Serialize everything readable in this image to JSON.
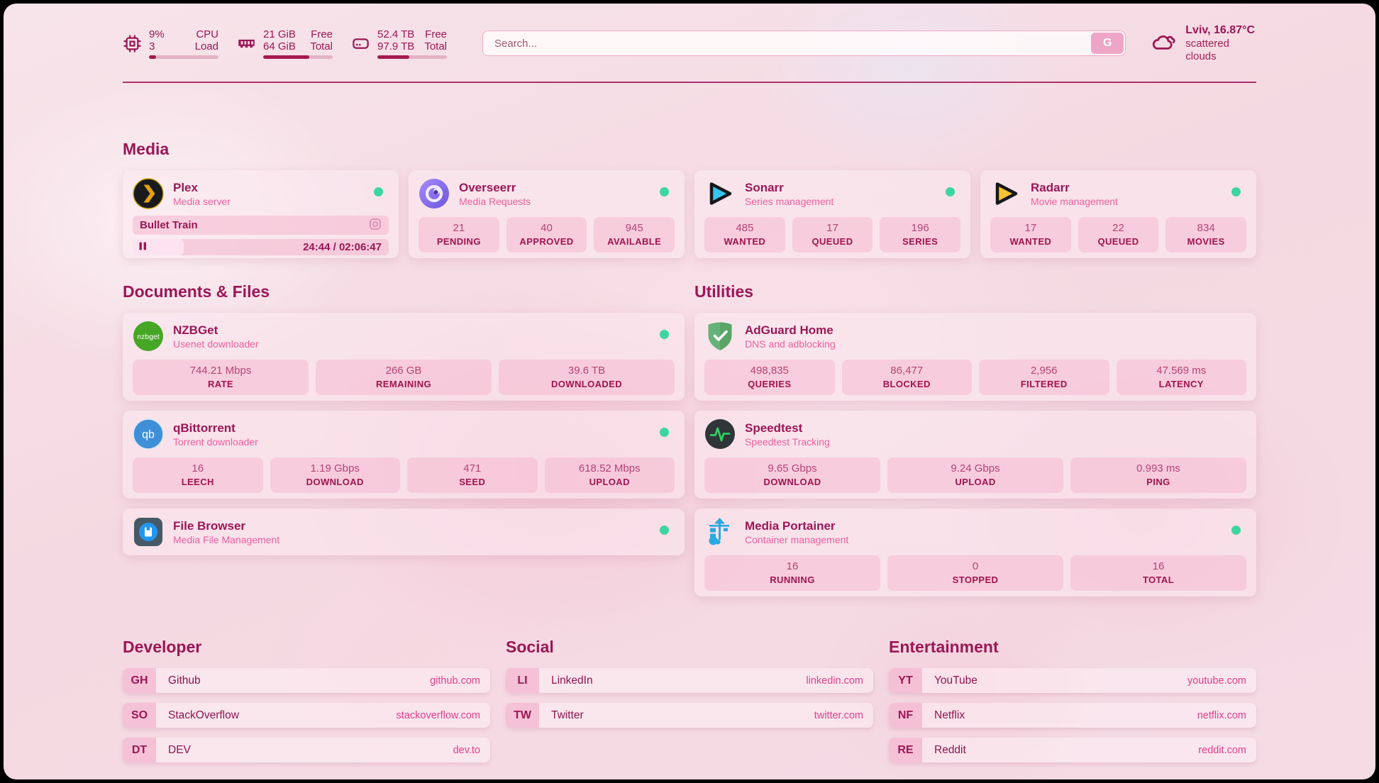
{
  "theme": {
    "accent": "#9b1656",
    "subtitle_pink": "#ee5f9f",
    "url_pink": "#e23f8d",
    "online_green": "#3ed6a0",
    "progress_fill": "#a41a4e"
  },
  "topbar": {
    "cpu": {
      "value_top": "9%",
      "value_bottom": "3",
      "label_top": "CPU",
      "label_bottom": "Load",
      "progress_pct": 10
    },
    "memory": {
      "value_top": "21 GiB",
      "value_bottom": "64 GiB",
      "label_top": "Free",
      "label_bottom": "Total",
      "progress_pct": 66
    },
    "storage": {
      "value_top": "52.4 TB",
      "value_bottom": "97.9 TB",
      "label_top": "Free",
      "label_bottom": "Total",
      "progress_pct": 46
    },
    "search": {
      "placeholder": "Search...",
      "button_label": "G"
    },
    "weather": {
      "location_temp": "Lviv, 16.87°C",
      "condition": "scattered clouds"
    }
  },
  "sections": {
    "media": {
      "title": "Media",
      "cards": [
        {
          "name": "Plex",
          "subtitle": "Media server",
          "online": true,
          "player": {
            "title": "Bullet Train",
            "time": "24:44 / 02:06:47",
            "progress_pct": 20,
            "state": "paused"
          }
        },
        {
          "name": "Overseerr",
          "subtitle": "Media Requests",
          "online": true,
          "stats": [
            {
              "value": "21",
              "label": "PENDING"
            },
            {
              "value": "40",
              "label": "APPROVED"
            },
            {
              "value": "945",
              "label": "AVAILABLE"
            }
          ]
        },
        {
          "name": "Sonarr",
          "subtitle": "Series management",
          "online": true,
          "stats": [
            {
              "value": "485",
              "label": "WANTED"
            },
            {
              "value": "17",
              "label": "QUEUED"
            },
            {
              "value": "196",
              "label": "SERIES"
            }
          ]
        },
        {
          "name": "Radarr",
          "subtitle": "Movie management",
          "online": true,
          "stats": [
            {
              "value": "17",
              "label": "WANTED"
            },
            {
              "value": "22",
              "label": "QUEUED"
            },
            {
              "value": "834",
              "label": "MOVIES"
            }
          ]
        }
      ]
    },
    "documents": {
      "title": "Documents & Files",
      "cards": [
        {
          "name": "NZBGet",
          "subtitle": "Usenet downloader",
          "online": true,
          "stats": [
            {
              "value": "744.21 Mbps",
              "label": "RATE"
            },
            {
              "value": "266 GB",
              "label": "REMAINING"
            },
            {
              "value": "39.6 TB",
              "label": "DOWNLOADED"
            }
          ]
        },
        {
          "name": "qBittorrent",
          "subtitle": "Torrent downloader",
          "online": true,
          "stats": [
            {
              "value": "16",
              "label": "LEECH"
            },
            {
              "value": "1.19 Gbps",
              "label": "DOWNLOAD"
            },
            {
              "value": "471",
              "label": "SEED"
            },
            {
              "value": "618.52 Mbps",
              "label": "UPLOAD"
            }
          ]
        },
        {
          "name": "File Browser",
          "subtitle": "Media File Management",
          "online": true,
          "stats": []
        }
      ]
    },
    "utilities": {
      "title": "Utilities",
      "cards": [
        {
          "name": "AdGuard Home",
          "subtitle": "DNS and adblocking",
          "online": false,
          "stats": [
            {
              "value": "498,835",
              "label": "QUERIES"
            },
            {
              "value": "86,477",
              "label": "BLOCKED"
            },
            {
              "value": "2,956",
              "label": "FILTERED"
            },
            {
              "value": "47.569 ms",
              "label": "LATENCY"
            }
          ]
        },
        {
          "name": "Speedtest",
          "subtitle": "Speedtest Tracking",
          "online": false,
          "stats": [
            {
              "value": "9.65 Gbps",
              "label": "DOWNLOAD"
            },
            {
              "value": "9.24 Gbps",
              "label": "UPLOAD"
            },
            {
              "value": "0.993 ms",
              "label": "PING"
            }
          ]
        },
        {
          "name": "Media Portainer",
          "subtitle": "Container management",
          "online": true,
          "stats": [
            {
              "value": "16",
              "label": "RUNNING"
            },
            {
              "value": "0",
              "label": "STOPPED"
            },
            {
              "value": "16",
              "label": "TOTAL"
            }
          ]
        }
      ]
    },
    "developer": {
      "title": "Developer",
      "links": [
        {
          "abbr": "GH",
          "name": "Github",
          "url": "github.com"
        },
        {
          "abbr": "SO",
          "name": "StackOverflow",
          "url": "stackoverflow.com"
        },
        {
          "abbr": "DT",
          "name": "DEV",
          "url": "dev.to"
        }
      ]
    },
    "social": {
      "title": "Social",
      "links": [
        {
          "abbr": "LI",
          "name": "LinkedIn",
          "url": "linkedin.com"
        },
        {
          "abbr": "TW",
          "name": "Twitter",
          "url": "twitter.com"
        }
      ]
    },
    "entertainment": {
      "title": "Entertainment",
      "links": [
        {
          "abbr": "YT",
          "name": "YouTube",
          "url": "youtube.com"
        },
        {
          "abbr": "NF",
          "name": "Netflix",
          "url": "netflix.com"
        },
        {
          "abbr": "RE",
          "name": "Reddit",
          "url": "reddit.com"
        }
      ]
    }
  }
}
